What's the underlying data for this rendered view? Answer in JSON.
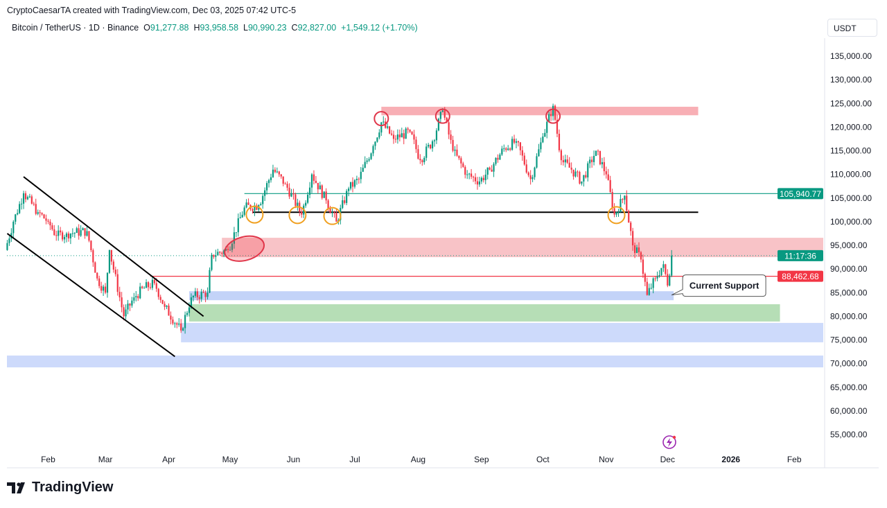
{
  "header": {
    "credit": "CryptoCaesarTA created with TradingView.com, Dec 03, 2025 07:42 UTC-5",
    "symbol": "Bitcoin / TetherUS · 1D · Binance",
    "open_label": "O",
    "open": "91,277.88",
    "high_label": "H",
    "high": "93,958.58",
    "low_label": "L",
    "low": "90,990.23",
    "close_label": "C",
    "close": "92,827.00",
    "change": "+1,549.12 (+1.70%)",
    "currency": "USDT"
  },
  "logo": "TradingView",
  "colors": {
    "up": "#089981",
    "down": "#f23645",
    "zone_red": "#f7a1a8",
    "zone_blue": "#b9cbf7",
    "zone_green": "#a9d8a9"
  },
  "chart_data": {
    "type": "candlestick",
    "interval": "1D",
    "ylim": [
      52000,
      139000
    ],
    "y_ticks": [
      "135,000.00",
      "130,000.00",
      "125,000.00",
      "120,000.00",
      "115,000.00",
      "110,000.00",
      "105,000.00",
      "100,000.00",
      "95,000.00",
      "90,000.00",
      "85,000.00",
      "80,000.00",
      "75,000.00",
      "70,000.00",
      "65,000.00",
      "60,000.00",
      "55,000.00"
    ],
    "y_tick_values": [
      135000,
      130000,
      125000,
      120000,
      115000,
      110000,
      105000,
      100000,
      95000,
      90000,
      85000,
      80000,
      75000,
      70000,
      65000,
      60000,
      55000
    ],
    "x_ticks": [
      {
        "label": "Feb",
        "date": "2025-02-01"
      },
      {
        "label": "Mar",
        "date": "2025-03-01"
      },
      {
        "label": "Apr",
        "date": "2025-04-01"
      },
      {
        "label": "May",
        "date": "2025-05-01"
      },
      {
        "label": "Jun",
        "date": "2025-06-01"
      },
      {
        "label": "Jul",
        "date": "2025-07-01"
      },
      {
        "label": "Aug",
        "date": "2025-08-01"
      },
      {
        "label": "Sep",
        "date": "2025-09-01"
      },
      {
        "label": "Oct",
        "date": "2025-10-01"
      },
      {
        "label": "Nov",
        "date": "2025-11-01"
      },
      {
        "label": "Dec",
        "date": "2025-12-01"
      },
      {
        "label": "2026",
        "date": "2026-01-01"
      },
      {
        "label": "Feb",
        "date": "2026-02-01"
      }
    ],
    "closes": [
      [
        "2025-01-11",
        94000
      ],
      [
        "2025-01-15",
        100000
      ],
      [
        "2025-01-20",
        106000
      ],
      [
        "2025-01-27",
        102000
      ],
      [
        "2025-02-01",
        100000
      ],
      [
        "2025-02-05",
        97000
      ],
      [
        "2025-02-10",
        97500
      ],
      [
        "2025-02-20",
        98000
      ],
      [
        "2025-02-25",
        88000
      ],
      [
        "2025-03-01",
        85000
      ],
      [
        "2025-03-03",
        94000
      ],
      [
        "2025-03-10",
        80000
      ],
      [
        "2025-03-15",
        84000
      ],
      [
        "2025-03-20",
        86000
      ],
      [
        "2025-03-25",
        87000
      ],
      [
        "2025-03-30",
        82000
      ],
      [
        "2025-04-07",
        77000
      ],
      [
        "2025-04-12",
        84000
      ],
      [
        "2025-04-20",
        85000
      ],
      [
        "2025-04-22",
        93000
      ],
      [
        "2025-04-30",
        94000
      ],
      [
        "2025-05-08",
        103000
      ],
      [
        "2025-05-15",
        103500
      ],
      [
        "2025-05-22",
        111000
      ],
      [
        "2025-05-28",
        108000
      ],
      [
        "2025-06-05",
        101500
      ],
      [
        "2025-06-10",
        110000
      ],
      [
        "2025-06-17",
        104500
      ],
      [
        "2025-06-22",
        100000
      ],
      [
        "2025-06-28",
        107000
      ],
      [
        "2025-07-03",
        109000
      ],
      [
        "2025-07-10",
        116000
      ],
      [
        "2025-07-14",
        121000
      ],
      [
        "2025-07-20",
        117500
      ],
      [
        "2025-07-28",
        119000
      ],
      [
        "2025-08-02",
        113000
      ],
      [
        "2025-08-08",
        117000
      ],
      [
        "2025-08-13",
        123500
      ],
      [
        "2025-08-18",
        115000
      ],
      [
        "2025-08-25",
        110000
      ],
      [
        "2025-08-31",
        108500
      ],
      [
        "2025-09-05",
        111000
      ],
      [
        "2025-09-12",
        115500
      ],
      [
        "2025-09-18",
        117000
      ],
      [
        "2025-09-25",
        109000
      ],
      [
        "2025-10-01",
        118000
      ],
      [
        "2025-10-06",
        124500
      ],
      [
        "2025-10-10",
        113000
      ],
      [
        "2025-10-15",
        111000
      ],
      [
        "2025-10-20",
        108500
      ],
      [
        "2025-10-27",
        115000
      ],
      [
        "2025-11-01",
        110000
      ],
      [
        "2025-11-05",
        101500
      ],
      [
        "2025-11-10",
        105500
      ],
      [
        "2025-11-14",
        95000
      ],
      [
        "2025-11-18",
        92000
      ],
      [
        "2025-11-21",
        84500
      ],
      [
        "2025-11-25",
        88000
      ],
      [
        "2025-11-29",
        91000
      ],
      [
        "2025-12-01",
        86500
      ],
      [
        "2025-12-03",
        92827
      ]
    ],
    "price_labels": [
      {
        "text": "105,940.77",
        "value": 105940.77,
        "color": "#089981"
      },
      {
        "text": "11:17:36",
        "value": 92827,
        "color": "#089981"
      },
      {
        "text": "88,462.68",
        "value": 88462.68,
        "color": "#f23645"
      }
    ],
    "annotations": {
      "zones": [
        {
          "name": "top-resistance-zone",
          "from": "2025-07-14",
          "to": "2025-12-16",
          "low": 122500,
          "high": 124300,
          "color": "#f7a1a8"
        },
        {
          "name": "resistance-zone",
          "from": "2025-04-27",
          "to": "edge",
          "low": 92500,
          "high": 96600,
          "color": "#f7b8bd"
        },
        {
          "name": "current-support-zone",
          "from": "2025-04-11",
          "to": "2025-12-04",
          "low": 83400,
          "high": 85300,
          "color": "#b9cbf7"
        },
        {
          "name": "green-support-zone",
          "from": "2025-04-11",
          "to": "2026-01-25",
          "low": 78900,
          "high": 82550,
          "color": "#a9d8a9"
        },
        {
          "name": "lower-support-zone",
          "from": "2025-04-07",
          "to": "edge",
          "low": 74500,
          "high": 78600,
          "color": "#c4d3fa"
        },
        {
          "name": "deep-support-zone",
          "from": "start",
          "to": "edge",
          "low": 69200,
          "high": 71700,
          "color": "#c4d3fa"
        }
      ],
      "lines": [
        {
          "name": "neckline",
          "from": "2025-05-12",
          "to": "2025-12-16",
          "value": 102000,
          "color": "#000000"
        },
        {
          "name": "teal-level",
          "from": "2025-05-08",
          "to": "edge",
          "value": 105940.77,
          "color": "#089981"
        },
        {
          "name": "red-level",
          "from": "2025-03-23",
          "to": "edge",
          "value": 88462.68,
          "color": "#f23645"
        }
      ],
      "channel": [
        {
          "name": "channel-upper",
          "from": [
            "2025-01-20",
            109500
          ],
          "to": [
            "2025-04-18",
            80000
          ]
        },
        {
          "name": "channel-lower",
          "from": [
            "2025-01-12",
            97500
          ],
          "to": [
            "2025-04-04",
            71500
          ]
        }
      ],
      "top_circles": [
        [
          "2025-07-14",
          121800
        ],
        [
          "2025-08-13",
          122300
        ],
        [
          "2025-10-06",
          122300
        ]
      ],
      "support_circles": [
        [
          "2025-05-13",
          101500
        ],
        [
          "2025-06-03",
          101400
        ],
        [
          "2025-06-20",
          101200
        ],
        [
          "2025-11-06",
          101400
        ]
      ],
      "breakout_ellipse": [
        "2025-05-08",
        94300
      ],
      "callout": {
        "text": "Current Support",
        "value": 84500,
        "date": "2025-12-05"
      }
    }
  }
}
